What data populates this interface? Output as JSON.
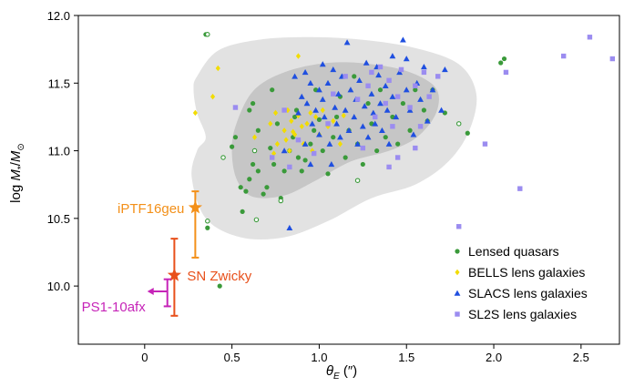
{
  "chart_data": {
    "type": "scatter",
    "xlabel": "θE (″)",
    "ylabel": "log M*/M⊙",
    "xlim": [
      -0.38,
      2.72
    ],
    "ylim": [
      9.57,
      12.0
    ],
    "xticks": [
      0,
      0.5,
      1.0,
      1.5,
      2.0,
      2.5
    ],
    "xtick_labels": [
      "0",
      "0.5",
      "1.0",
      "1.5",
      "2.0",
      "2.5"
    ],
    "yticks": [
      10.0,
      10.5,
      11.0,
      11.5,
      12.0
    ],
    "ytick_labels": [
      "10.0",
      "10.5",
      "11.0",
      "11.5",
      "12.0"
    ],
    "grid": false,
    "legend_position": "bottom-right",
    "colors": {
      "contour_outer": "#e2e2e2",
      "contour_inner": "#c6c6c6",
      "quasar": "#3a9a3a",
      "bells": "#f2dc00",
      "slacs": "#1f4fe0",
      "sl2s": "#9b8cf0",
      "iptf": "#f39019",
      "zwicky": "#e8501b",
      "ps1": "#c624b8"
    },
    "contours": {
      "outer": [
        [
          0.3,
          11.55
        ],
        [
          0.42,
          11.74
        ],
        [
          0.65,
          11.82
        ],
        [
          0.95,
          11.84
        ],
        [
          1.25,
          11.82
        ],
        [
          1.55,
          11.76
        ],
        [
          1.8,
          11.64
        ],
        [
          1.9,
          11.42
        ],
        [
          1.86,
          11.15
        ],
        [
          1.74,
          10.92
        ],
        [
          1.55,
          10.75
        ],
        [
          1.3,
          10.65
        ],
        [
          1.05,
          10.48
        ],
        [
          0.8,
          10.36
        ],
        [
          0.55,
          10.36
        ],
        [
          0.35,
          10.5
        ],
        [
          0.27,
          10.8
        ],
        [
          0.3,
          11.0
        ],
        [
          0.35,
          11.1
        ],
        [
          0.3,
          11.28
        ],
        [
          0.28,
          11.45
        ]
      ],
      "inner": [
        [
          0.52,
          11.18
        ],
        [
          0.62,
          11.44
        ],
        [
          0.8,
          11.58
        ],
        [
          1.05,
          11.65
        ],
        [
          1.3,
          11.64
        ],
        [
          1.52,
          11.58
        ],
        [
          1.67,
          11.46
        ],
        [
          1.67,
          11.28
        ],
        [
          1.56,
          11.1
        ],
        [
          1.4,
          11.0
        ],
        [
          1.18,
          10.92
        ],
        [
          0.98,
          10.78
        ],
        [
          0.8,
          10.67
        ],
        [
          0.62,
          10.66
        ],
        [
          0.53,
          10.78
        ],
        [
          0.5,
          10.98
        ]
      ]
    },
    "series": [
      {
        "name": "Lensed quasars",
        "marker": "circle",
        "points": [
          [
            0.35,
            11.86
          ],
          [
            0.43,
            10.0
          ],
          [
            0.36,
            10.43
          ],
          [
            0.5,
            11.03
          ],
          [
            0.52,
            11.1
          ],
          [
            0.55,
            10.73
          ],
          [
            0.56,
            10.55
          ],
          [
            0.58,
            10.7
          ],
          [
            0.6,
            10.79
          ],
          [
            0.62,
            10.9
          ],
          [
            0.6,
            11.3
          ],
          [
            0.62,
            11.35
          ],
          [
            0.65,
            11.15
          ],
          [
            0.65,
            10.85
          ],
          [
            0.68,
            10.68
          ],
          [
            0.7,
            10.73
          ],
          [
            0.72,
            11.02
          ],
          [
            0.73,
            11.45
          ],
          [
            0.74,
            10.9
          ],
          [
            0.76,
            11.2
          ],
          [
            0.78,
            10.65
          ],
          [
            0.8,
            10.85
          ],
          [
            0.83,
            11.0
          ],
          [
            0.85,
            11.1
          ],
          [
            0.86,
            11.25
          ],
          [
            0.87,
            11.3
          ],
          [
            0.88,
            10.95
          ],
          [
            0.9,
            10.85
          ],
          [
            0.92,
            10.93
          ],
          [
            0.95,
            11.05
          ],
          [
            0.97,
            11.15
          ],
          [
            0.98,
            11.45
          ],
          [
            1.0,
            11.23
          ],
          [
            1.02,
            11.0
          ],
          [
            1.05,
            10.83
          ],
          [
            1.08,
            11.1
          ],
          [
            1.1,
            11.25
          ],
          [
            1.12,
            11.4
          ],
          [
            1.15,
            10.95
          ],
          [
            1.17,
            11.15
          ],
          [
            1.2,
            11.55
          ],
          [
            1.22,
            11.05
          ],
          [
            1.25,
            10.9
          ],
          [
            1.28,
            11.35
          ],
          [
            1.3,
            11.2
          ],
          [
            1.33,
            11.0
          ],
          [
            1.35,
            11.45
          ],
          [
            1.38,
            11.1
          ],
          [
            1.42,
            11.25
          ],
          [
            1.45,
            11.05
          ],
          [
            1.48,
            11.35
          ],
          [
            1.52,
            11.15
          ],
          [
            1.55,
            11.45
          ],
          [
            1.6,
            11.3
          ],
          [
            1.62,
            11.22
          ],
          [
            1.65,
            11.45
          ],
          [
            1.72,
            11.28
          ],
          [
            1.85,
            11.13
          ],
          [
            2.06,
            11.68
          ],
          [
            2.04,
            11.65
          ]
        ],
        "hollow_points": [
          [
            0.36,
            11.86
          ],
          [
            0.36,
            10.48
          ],
          [
            0.64,
            10.49
          ],
          [
            0.45,
            10.95
          ],
          [
            0.63,
            11.0
          ],
          [
            1.8,
            11.2
          ],
          [
            0.78,
            10.63
          ],
          [
            1.22,
            10.78
          ]
        ]
      },
      {
        "name": "BELLS lens galaxies",
        "marker": "diamond",
        "points": [
          [
            0.29,
            11.28
          ],
          [
            0.39,
            11.4
          ],
          [
            0.42,
            11.61
          ],
          [
            0.63,
            11.1
          ],
          [
            0.72,
            11.2
          ],
          [
            0.74,
            10.98
          ],
          [
            0.75,
            11.28
          ],
          [
            0.76,
            11.05
          ],
          [
            0.8,
            11.15
          ],
          [
            0.81,
            11.08
          ],
          [
            0.82,
            11.3
          ],
          [
            0.83,
            11.0
          ],
          [
            0.84,
            11.22
          ],
          [
            0.86,
            11.12
          ],
          [
            0.88,
            11.26
          ],
          [
            0.88,
            11.7
          ],
          [
            0.9,
            11.18
          ],
          [
            0.91,
            11.05
          ],
          [
            0.93,
            11.2
          ],
          [
            0.95,
            11.28
          ],
          [
            0.96,
            11.0
          ],
          [
            0.98,
            11.25
          ],
          [
            1.0,
            11.12
          ],
          [
            1.02,
            11.3
          ],
          [
            1.05,
            11.18
          ],
          [
            1.08,
            11.22
          ],
          [
            1.12,
            11.05
          ],
          [
            1.14,
            11.26
          ],
          [
            0.85,
            11.14
          ]
        ]
      },
      {
        "name": "SLACS lens galaxies",
        "marker": "triangle",
        "points": [
          [
            0.8,
            11.0
          ],
          [
            0.86,
            11.55
          ],
          [
            0.88,
            11.28
          ],
          [
            0.9,
            11.4
          ],
          [
            0.92,
            11.05
          ],
          [
            0.93,
            11.35
          ],
          [
            0.95,
            11.5
          ],
          [
            0.96,
            11.2
          ],
          [
            0.98,
            11.3
          ],
          [
            1.0,
            11.45
          ],
          [
            1.0,
            11.12
          ],
          [
            1.02,
            11.38
          ],
          [
            1.03,
            11.25
          ],
          [
            1.05,
            11.5
          ],
          [
            1.06,
            11.05
          ],
          [
            1.08,
            11.6
          ],
          [
            1.09,
            11.32
          ],
          [
            1.1,
            11.2
          ],
          [
            1.11,
            11.42
          ],
          [
            1.12,
            11.1
          ],
          [
            1.13,
            11.55
          ],
          [
            1.15,
            11.3
          ],
          [
            1.16,
            11.8
          ],
          [
            1.17,
            11.15
          ],
          [
            1.18,
            11.45
          ],
          [
            1.2,
            11.25
          ],
          [
            1.21,
            11.38
          ],
          [
            1.22,
            11.05
          ],
          [
            1.23,
            11.52
          ],
          [
            1.25,
            11.18
          ],
          [
            1.26,
            11.33
          ],
          [
            1.27,
            11.65
          ],
          [
            1.28,
            11.1
          ],
          [
            1.3,
            11.42
          ],
          [
            1.31,
            11.28
          ],
          [
            1.32,
            11.2
          ],
          [
            1.34,
            11.56
          ],
          [
            1.35,
            11.35
          ],
          [
            1.36,
            11.15
          ],
          [
            1.38,
            11.48
          ],
          [
            1.39,
            11.3
          ],
          [
            1.4,
            11.05
          ],
          [
            1.42,
            11.4
          ],
          [
            1.44,
            11.25
          ],
          [
            1.46,
            11.58
          ],
          [
            1.48,
            11.82
          ],
          [
            1.5,
            11.45
          ],
          [
            1.52,
            11.3
          ],
          [
            1.54,
            11.12
          ],
          [
            1.56,
            11.5
          ],
          [
            1.58,
            11.38
          ],
          [
            1.6,
            11.62
          ],
          [
            1.62,
            11.22
          ],
          [
            1.65,
            11.45
          ],
          [
            1.7,
            11.3
          ],
          [
            1.72,
            11.6
          ],
          [
            1.5,
            11.68
          ],
          [
            1.42,
            11.7
          ],
          [
            1.33,
            11.62
          ],
          [
            1.02,
            11.64
          ],
          [
            0.92,
            11.58
          ],
          [
            0.83,
            10.43
          ],
          [
            0.95,
            10.9
          ],
          [
            1.07,
            10.9
          ]
        ]
      },
      {
        "name": "SL2S lens galaxies",
        "marker": "square",
        "points": [
          [
            0.52,
            11.32
          ],
          [
            0.73,
            10.95
          ],
          [
            0.8,
            11.3
          ],
          [
            0.83,
            10.88
          ],
          [
            0.88,
            11.08
          ],
          [
            0.97,
            10.98
          ],
          [
            1.05,
            11.2
          ],
          [
            1.08,
            11.42
          ],
          [
            1.15,
            11.55
          ],
          [
            1.22,
            11.38
          ],
          [
            1.25,
            11.02
          ],
          [
            1.28,
            11.48
          ],
          [
            1.3,
            11.58
          ],
          [
            1.32,
            11.25
          ],
          [
            1.35,
            11.62
          ],
          [
            1.38,
            11.35
          ],
          [
            1.4,
            11.52
          ],
          [
            1.42,
            11.18
          ],
          [
            1.45,
            11.4
          ],
          [
            1.47,
            11.6
          ],
          [
            1.52,
            11.32
          ],
          [
            1.55,
            11.48
          ],
          [
            1.58,
            11.18
          ],
          [
            1.6,
            11.58
          ],
          [
            1.63,
            11.4
          ],
          [
            1.68,
            11.55
          ],
          [
            1.55,
            11.02
          ],
          [
            1.45,
            10.95
          ],
          [
            1.4,
            10.88
          ],
          [
            1.8,
            10.44
          ],
          [
            1.95,
            11.05
          ],
          [
            2.07,
            11.58
          ],
          [
            2.15,
            10.72
          ],
          [
            2.4,
            11.7
          ],
          [
            2.55,
            11.84
          ],
          [
            2.68,
            11.68
          ]
        ]
      }
    ],
    "special_points": [
      {
        "name": "iPTF16geu",
        "x": 0.29,
        "y": 10.58,
        "yerr": [
          10.21,
          10.7
        ],
        "color": "#f39019",
        "marker": "star"
      },
      {
        "name": "SN Zwicky",
        "x": 0.17,
        "y": 10.08,
        "yerr": [
          9.78,
          10.35
        ],
        "color": "#e8501b",
        "marker": "star"
      },
      {
        "name": "PS1-10afx",
        "x": 0.13,
        "y": 9.96,
        "yerr": [
          9.85,
          10.05
        ],
        "color": "#c624b8",
        "marker": "upper-limit-left"
      }
    ]
  }
}
